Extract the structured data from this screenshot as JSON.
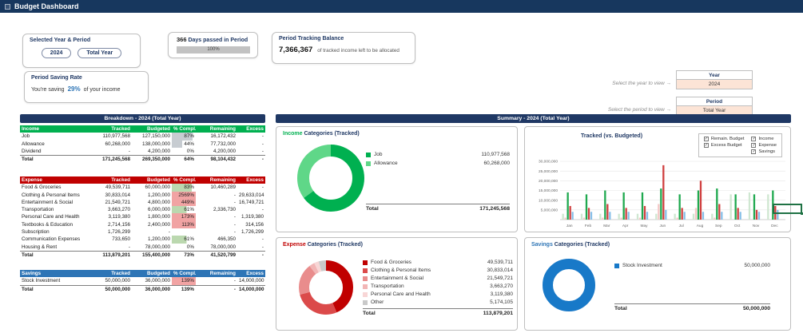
{
  "app": {
    "title": "Budget Dashboard"
  },
  "cards": {
    "year_period": {
      "title": "Selected Year & Period",
      "year_button": "2024",
      "period_button": "Total Year"
    },
    "days_passed": {
      "value": "366",
      "label": "Days passed in Period",
      "progress_label": "100%",
      "progress_pct": 100
    },
    "tracking_balance": {
      "title": "Period Tracking Balance",
      "value": "7,366,367",
      "caption": "of tracked income left to be allocated"
    },
    "saving_rate": {
      "title": "Period Saving Rate",
      "prefix": "You're saving",
      "value": "29%",
      "suffix": "of your income"
    }
  },
  "selectors": {
    "year": {
      "hint": "Select the year to view →",
      "label": "Year",
      "value": "2024"
    },
    "period": {
      "hint": "Select the period to view →",
      "label": "Period",
      "value": "Total Year"
    }
  },
  "sections": {
    "breakdown": "Breakdown - 2024 (Total Year)",
    "summary": "Summary - 2024 (Total Year)"
  },
  "tables": [
    {
      "id": "income",
      "header_color": "#00B050",
      "columns": [
        "Income",
        "Tracked",
        "Budgeted",
        "% Compl.",
        "Remaining",
        "Excess"
      ],
      "rows": [
        {
          "name": "Job",
          "tracked": "110,977,568",
          "budgeted": "127,150,000",
          "compl": "87%",
          "remaining": "16,172,432",
          "excess": "-",
          "compl_fill": "gray",
          "compl_pct": 87
        },
        {
          "name": "Allowance",
          "tracked": "60,268,000",
          "budgeted": "138,000,000",
          "compl": "44%",
          "remaining": "77,732,000",
          "excess": "-",
          "compl_fill": "gray",
          "compl_pct": 44
        },
        {
          "name": "Dividend",
          "tracked": "-",
          "budgeted": "4,200,000",
          "compl": "0%",
          "remaining": "4,200,000",
          "excess": "-",
          "compl_fill": "none",
          "compl_pct": 0
        }
      ],
      "total": {
        "name": "Total",
        "tracked": "171,245,568",
        "budgeted": "269,350,000",
        "compl": "64%",
        "remaining": "98,104,432",
        "excess": "-"
      }
    },
    {
      "id": "expense",
      "header_color": "#C00000",
      "columns": [
        "Expense",
        "Tracked",
        "Budgeted",
        "% Compl.",
        "Remaining",
        "Excess"
      ],
      "rows": [
        {
          "name": "Food & Groceries",
          "tracked": "49,539,711",
          "budgeted": "60,000,000",
          "compl": "83%",
          "remaining": "10,460,289",
          "excess": "-",
          "compl_fill": "green",
          "compl_pct": 83
        },
        {
          "name": "Clothing & Personal Items",
          "tracked": "30,833,014",
          "budgeted": "1,200,000",
          "compl": "2569%",
          "remaining": "-",
          "excess": "29,633,014",
          "compl_fill": "pink",
          "compl_pct": 100
        },
        {
          "name": "Entertainment & Social",
          "tracked": "21,549,721",
          "budgeted": "4,800,000",
          "compl": "449%",
          "remaining": "-",
          "excess": "16,749,721",
          "compl_fill": "pink",
          "compl_pct": 100
        },
        {
          "name": "Transportation",
          "tracked": "3,663,270",
          "budgeted": "6,000,000",
          "compl": "61%",
          "remaining": "2,336,730",
          "excess": "-",
          "compl_fill": "green",
          "compl_pct": 61
        },
        {
          "name": "Personal Care and Health",
          "tracked": "3,119,380",
          "budgeted": "1,800,000",
          "compl": "173%",
          "remaining": "-",
          "excess": "1,319,380",
          "compl_fill": "pink",
          "compl_pct": 100
        },
        {
          "name": "Textbooks & Education",
          "tracked": "2,714,156",
          "budgeted": "2,400,000",
          "compl": "113%",
          "remaining": "-",
          "excess": "314,156",
          "compl_fill": "pink",
          "compl_pct": 100
        },
        {
          "name": "Subscription",
          "tracked": "1,726,299",
          "budgeted": "-",
          "compl": "",
          "remaining": "-",
          "excess": "1,726,299",
          "compl_fill": "none",
          "compl_pct": 0
        },
        {
          "name": "Communication Expenses",
          "tracked": "733,650",
          "budgeted": "1,200,000",
          "compl": "61%",
          "remaining": "466,350",
          "excess": "-",
          "compl_fill": "green",
          "compl_pct": 61
        },
        {
          "name": "Housing & Rent",
          "tracked": "-",
          "budgeted": "78,000,000",
          "compl": "0%",
          "remaining": "78,000,000",
          "excess": "-",
          "compl_fill": "none",
          "compl_pct": 0
        }
      ],
      "total": {
        "name": "Total",
        "tracked": "113,879,201",
        "budgeted": "155,400,000",
        "compl": "73%",
        "remaining": "41,520,799",
        "excess": "-"
      }
    },
    {
      "id": "savings",
      "header_color": "#2E75B6",
      "columns": [
        "Savings",
        "Tracked",
        "Budgeted",
        "% Compl.",
        "Remaining",
        "Excess"
      ],
      "rows": [
        {
          "name": "Stock Investment",
          "tracked": "50,000,000",
          "budgeted": "36,000,000",
          "compl": "139%",
          "remaining": "-",
          "excess": "14,000,000",
          "compl_fill": "pink",
          "compl_pct": 100
        }
      ],
      "total": {
        "name": "Total",
        "tracked": "50,000,000",
        "budgeted": "36,000,000",
        "compl": "139%",
        "remaining": "-",
        "excess": "14,000,000"
      }
    }
  ],
  "chart_data": [
    {
      "id": "income_donut",
      "type": "donut",
      "title_prefix": "Income",
      "title_rest": " Categories (Tracked)",
      "title_color": "#00B050",
      "items": [
        {
          "label": "Job",
          "value": 110977568,
          "display": "110,977,568",
          "color": "#00B050"
        },
        {
          "label": "Allowance",
          "value": 60268000,
          "display": "60,268,000",
          "color": "#5FD788"
        }
      ],
      "total_label": "Total",
      "total_display": "171,245,568"
    },
    {
      "id": "expense_donut",
      "type": "donut",
      "title_prefix": "Expense",
      "title_rest": " Categories (Tracked)",
      "title_color": "#C00000",
      "items": [
        {
          "label": "Food & Groceries",
          "value": 49539711,
          "display": "49,539,711",
          "color": "#C00000"
        },
        {
          "label": "Clothing & Personal Items",
          "value": 30833014,
          "display": "30,833,014",
          "color": "#DB4A4A"
        },
        {
          "label": "Entertainment & Social",
          "value": 21549721,
          "display": "21,549,721",
          "color": "#E98C8C"
        },
        {
          "label": "Transportation",
          "value": 3663270,
          "display": "3,663,270",
          "color": "#F2B5B5"
        },
        {
          "label": "Personal Care and Health",
          "value": 3119380,
          "display": "3,119,380",
          "color": "#F8D6D6"
        },
        {
          "label": "Other",
          "value": 5174105,
          "display": "5,174,105",
          "color": "#C9C9C9"
        }
      ],
      "total_label": "Total",
      "total_display": "113,879,201"
    },
    {
      "id": "savings_donut",
      "type": "donut",
      "title_prefix": "Savings",
      "title_rest": " Categories (Tracked)",
      "title_color": "#2E75B6",
      "items": [
        {
          "label": "Stock Investment",
          "value": 50000000,
          "display": "50,000,000",
          "color": "#1879C8"
        }
      ],
      "total_label": "Total",
      "total_display": "50,000,000"
    },
    {
      "id": "tracked_vs_budgeted",
      "type": "bar",
      "title": "Tracked (vs. Budgeted)",
      "categories": [
        "Jan",
        "Feb",
        "Mar",
        "Apr",
        "May",
        "Jun",
        "Jul",
        "Aug",
        "Sep",
        "Oct",
        "Nov",
        "Dec"
      ],
      "unit": "values in millions, estimated from gridlines",
      "ylim": [
        0,
        30000000
      ],
      "yticks": [
        "5,000,000",
        "10,000,000",
        "15,000,000",
        "20,000,000",
        "25,000,000",
        "30,000,000"
      ],
      "legend_position": "top-right",
      "series": [
        {
          "name": "Remain. Budget",
          "color": "#CFE7D1",
          "checked": true,
          "values_millions": [
            3,
            3,
            3,
            3,
            3,
            3,
            3,
            3,
            3,
            13,
            14,
            13
          ]
        },
        {
          "name": "Excess Budget",
          "color": "#F6C6C6",
          "checked": true,
          "values_millions": [
            1,
            1,
            1,
            1,
            1,
            8,
            1,
            6,
            1,
            0,
            0,
            0
          ]
        },
        {
          "name": "Income",
          "color": "#1FA94F",
          "checked": true,
          "values_millions": [
            14,
            13,
            15,
            14,
            14,
            16,
            13,
            15,
            16,
            13,
            13,
            15
          ]
        },
        {
          "name": "Expense",
          "color": "#D04040",
          "checked": true,
          "values_millions": [
            7,
            6,
            8,
            6,
            7,
            28,
            6,
            20,
            8,
            6,
            5,
            7
          ]
        },
        {
          "name": "Savings",
          "color": "#86BFE8",
          "checked": true,
          "values_millions": [
            4,
            4,
            4,
            4,
            4,
            5,
            4,
            4,
            4,
            4,
            4,
            5
          ]
        }
      ],
      "legend_columns": [
        [
          "Remain. Budget",
          "Excess Budget"
        ],
        [
          "Income",
          "Expense",
          "Savings"
        ]
      ]
    }
  ]
}
